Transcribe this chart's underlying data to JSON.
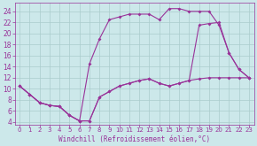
{
  "bg_color": "#cce8ea",
  "line_color": "#993399",
  "grid_color": "#aacccc",
  "xlabel": "Windchill (Refroidissement éolien,°C)",
  "xlim": [
    -0.5,
    23.5
  ],
  "ylim": [
    3.5,
    25.5
  ],
  "yticks": [
    4,
    6,
    8,
    10,
    12,
    14,
    16,
    18,
    20,
    22,
    24
  ],
  "xticks": [
    0,
    1,
    2,
    3,
    4,
    5,
    6,
    7,
    8,
    9,
    10,
    11,
    12,
    13,
    14,
    15,
    16,
    17,
    18,
    19,
    20,
    21,
    22,
    23
  ],
  "line1_x": [
    0,
    1,
    2,
    3,
    4,
    5,
    6,
    7,
    8,
    9,
    10,
    11,
    12,
    13,
    14,
    15,
    16,
    17,
    18,
    19,
    20,
    21,
    22,
    23
  ],
  "line1_y": [
    10.5,
    9.0,
    7.5,
    7.0,
    6.8,
    5.2,
    4.2,
    4.2,
    8.5,
    9.5,
    10.5,
    11.0,
    11.5,
    11.8,
    11.0,
    10.5,
    11.0,
    11.5,
    11.8,
    12.0,
    12.0,
    12.0,
    12.0,
    12.0
  ],
  "line2_x": [
    0,
    1,
    2,
    3,
    4,
    5,
    6,
    7,
    8,
    9,
    10,
    11,
    12,
    13,
    14,
    15,
    16,
    17,
    18,
    19,
    20,
    21,
    22,
    23
  ],
  "line2_y": [
    10.5,
    9.0,
    7.5,
    7.0,
    6.8,
    5.2,
    4.2,
    14.5,
    19.0,
    22.5,
    23.0,
    23.5,
    23.5,
    23.5,
    22.5,
    24.5,
    24.5,
    24.0,
    24.0,
    24.0,
    21.5,
    16.5,
    13.5,
    12.0
  ],
  "line3_x": [
    0,
    1,
    2,
    3,
    4,
    5,
    6,
    7,
    8,
    9,
    10,
    11,
    12,
    13,
    14,
    15,
    16,
    17,
    18,
    19,
    20,
    21,
    22,
    23
  ],
  "line3_y": [
    10.5,
    9.0,
    7.5,
    7.0,
    6.8,
    5.2,
    4.2,
    4.2,
    8.5,
    9.5,
    10.5,
    11.0,
    11.5,
    11.8,
    11.0,
    10.5,
    11.0,
    11.5,
    21.5,
    21.8,
    22.0,
    16.5,
    13.5,
    12.0
  ],
  "marker": "D",
  "markersize": 2.0,
  "linewidth": 0.8,
  "tick_fontsize": 5.0,
  "xlabel_fontsize": 5.5
}
